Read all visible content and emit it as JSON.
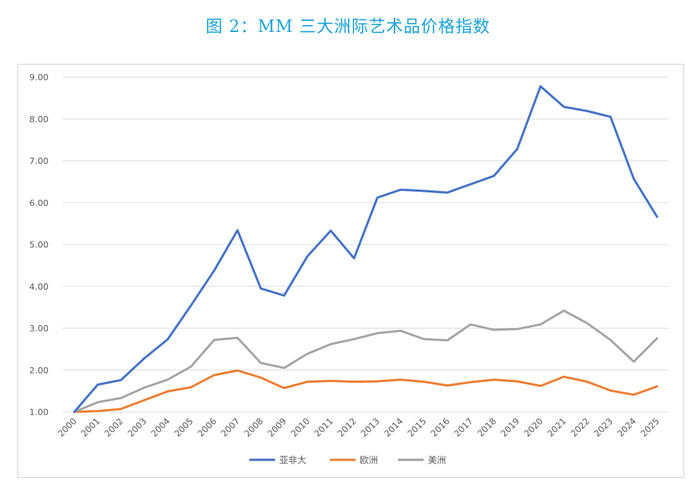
{
  "title": "图 2：MM 三大洲际艺术品价格指数",
  "chart_data": {
    "type": "line",
    "title": "图 2：MM 三大洲际艺术品价格指数",
    "xlabel": "",
    "ylabel": "",
    "categories": [
      "2000",
      "2001",
      "2002",
      "2003",
      "2004",
      "2005",
      "2006",
      "2007",
      "2008",
      "2009",
      "2010",
      "2011",
      "2012",
      "2013",
      "2014",
      "2015",
      "2016",
      "2017",
      "2018",
      "2019",
      "2020",
      "2021",
      "2022",
      "2023",
      "2024",
      "2025"
    ],
    "ylim": [
      1.0,
      9.0
    ],
    "yticks": [
      "1.00",
      "2.00",
      "3.00",
      "4.00",
      "5.00",
      "6.00",
      "7.00",
      "8.00",
      "9.00"
    ],
    "grid": true,
    "legend_position": "bottom",
    "series": [
      {
        "name": "亚非大",
        "color": "#4472c4",
        "values": [
          1.0,
          1.65,
          1.76,
          2.28,
          2.73,
          3.54,
          4.38,
          5.34,
          3.95,
          3.78,
          4.72,
          5.33,
          4.67,
          6.12,
          6.31,
          6.28,
          6.24,
          6.44,
          6.64,
          7.28,
          8.78,
          8.29,
          8.19,
          8.05,
          6.57,
          5.66
        ]
      },
      {
        "name": "欧洲",
        "color": "#ed7d31",
        "values": [
          1.0,
          1.02,
          1.07,
          1.28,
          1.49,
          1.59,
          1.88,
          1.99,
          1.82,
          1.57,
          1.72,
          1.74,
          1.72,
          1.73,
          1.77,
          1.72,
          1.63,
          1.71,
          1.77,
          1.73,
          1.62,
          1.84,
          1.72,
          1.51,
          1.41,
          1.61
        ]
      },
      {
        "name": "美洲",
        "color": "#a5a5a5",
        "values": [
          1.0,
          1.23,
          1.33,
          1.58,
          1.77,
          2.08,
          2.72,
          2.77,
          2.17,
          2.05,
          2.39,
          2.62,
          2.74,
          2.88,
          2.94,
          2.74,
          2.71,
          3.09,
          2.96,
          2.98,
          3.09,
          3.42,
          3.12,
          2.72,
          2.2,
          2.76
        ]
      }
    ]
  }
}
